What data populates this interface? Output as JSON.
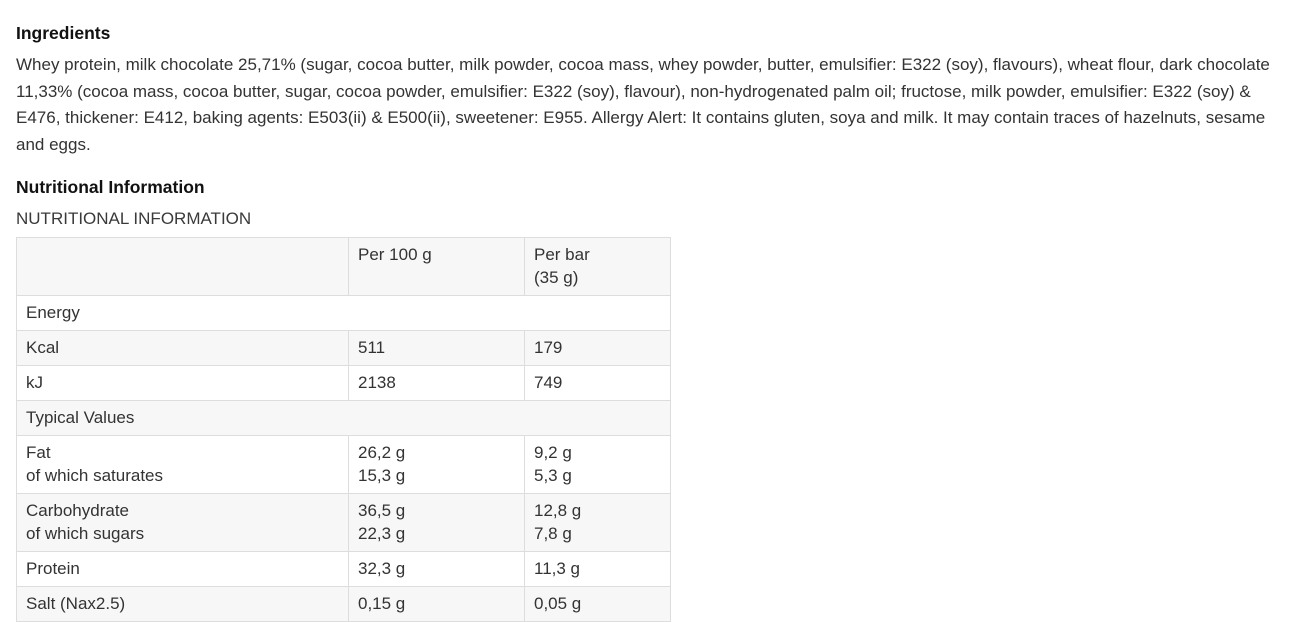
{
  "colors": {
    "background": "#ffffff",
    "text": "#333333",
    "heading": "#111111",
    "table_border": "#dddddd",
    "table_alt_row": "#f7f7f7"
  },
  "ingredients": {
    "heading": "Ingredients",
    "body": "Whey protein, milk chocolate 25,71% (sugar, cocoa butter, milk powder, cocoa mass, whey powder, butter, emulsifier: E322 (soy), flavours), wheat flour, dark chocolate 11,33% (cocoa mass, cocoa butter, sugar, cocoa powder, emulsifier: E322 (soy), flavour), non-hydrogenated palm oil; fructose, milk powder, emulsifier: E322 (soy) & E476, thickener: E412, baking agents: E503(ii) & E500(ii), sweetener: E955. Allergy Alert: It contains gluten, soya and milk. It may contain traces of hazelnuts, sesame and eggs."
  },
  "nutrition": {
    "heading": "Nutritional Information",
    "caption": "NUTRITIONAL INFORMATION",
    "table": {
      "columns": {
        "label": "",
        "per100": "Per 100 g",
        "per_bar": "Per bar\n(35 g)"
      },
      "rows": [
        {
          "type": "section",
          "label": "Energy"
        },
        {
          "type": "data",
          "label": "Kcal",
          "per100": "511",
          "per_bar": "179"
        },
        {
          "type": "data",
          "label": "kJ",
          "per100": "2138",
          "per_bar": "749"
        },
        {
          "type": "section",
          "label": "Typical Values"
        },
        {
          "type": "data",
          "label": "Fat\nof which saturates",
          "per100": "26,2 g\n15,3 g",
          "per_bar": "9,2 g\n5,3 g"
        },
        {
          "type": "data",
          "label": "Carbohydrate\nof which sugars",
          "per100": "36,5 g\n22,3 g",
          "per_bar": "12,8 g\n7,8 g"
        },
        {
          "type": "data",
          "label": "Protein",
          "per100": "32,3 g",
          "per_bar": "11,3 g"
        },
        {
          "type": "data",
          "label": "Salt (Nax2.5)",
          "per100": "0,15 g",
          "per_bar": "0,05 g"
        }
      ]
    }
  }
}
